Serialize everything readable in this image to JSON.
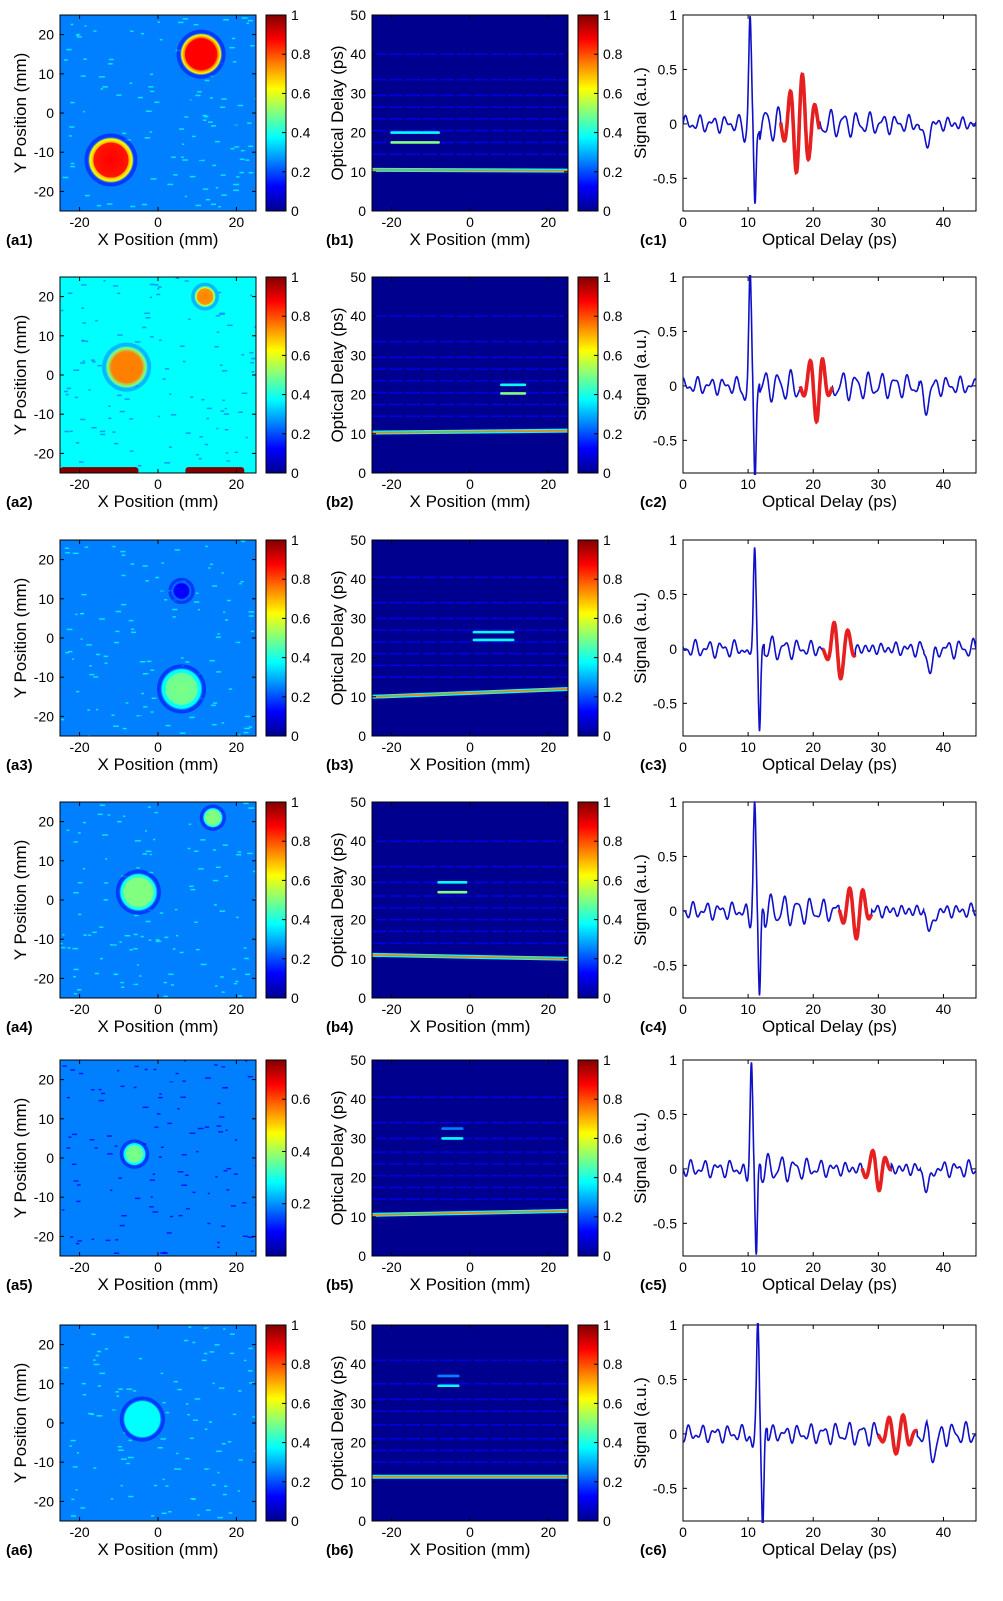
{
  "colormap": [
    "#00008f",
    "#0000ff",
    "#0080ff",
    "#00ffff",
    "#80ff80",
    "#ffff00",
    "#ff8000",
    "#ff0000",
    "#800000"
  ],
  "signal_color": "#1010c8",
  "highlight_color": "#e62020",
  "chart_data": [
    {
      "panel": "(a1)",
      "type": "heatmap",
      "xlabel": "X Position (mm)",
      "ylabel": "Y Position (mm)",
      "xlim": [
        -25,
        25
      ],
      "ylim": [
        -25,
        25
      ],
      "xticks": [
        -20,
        0,
        20
      ],
      "yticks": [
        -20,
        -10,
        0,
        10,
        20
      ],
      "colorbar": {
        "ticks": [
          0,
          0.2,
          0.4,
          0.6,
          0.8,
          1
        ],
        "max": 1
      },
      "background_level": 0.3,
      "features": [
        {
          "shape": "disk",
          "x": 11,
          "y": 15,
          "radius": 5.5,
          "level": 0.9
        },
        {
          "shape": "disk",
          "x": -12,
          "y": -12,
          "radius": 6,
          "level": 0.85
        }
      ]
    },
    {
      "panel": "(b1)",
      "type": "heatmap",
      "xlabel": "X Position (mm)",
      "ylabel": "Optical Delay (ps)",
      "xlim": [
        -25,
        25
      ],
      "ylim": [
        0,
        50
      ],
      "xticks": [
        -20,
        0,
        20
      ],
      "yticks": [
        0,
        10,
        20,
        30,
        40,
        50
      ],
      "colorbar": {
        "ticks": [
          0,
          0.2,
          0.4,
          0.6,
          0.8,
          1
        ],
        "max": 1
      },
      "surface": {
        "y_start": 10.5,
        "y_end": 10.3
      },
      "echo_lines": [
        14.5,
        17.5,
        20.5,
        23.5,
        26.5,
        29.5,
        33.5,
        40
      ],
      "defect_echoes": [
        {
          "y": 17.5,
          "x0": -20,
          "x1": -8,
          "level": 0.55
        },
        {
          "y": 20,
          "x0": -20,
          "x1": -8,
          "level": 0.35
        }
      ]
    },
    {
      "panel": "(c1)",
      "type": "line",
      "xlabel": "Optical Delay (ps)",
      "ylabel": "Signal (a.u.)",
      "xlim": [
        0,
        45
      ],
      "ylim": [
        -0.8,
        1
      ],
      "xticks": [
        0,
        10,
        20,
        30,
        40
      ],
      "yticks": [
        -0.5,
        0,
        0.5,
        1
      ],
      "main_pulse": {
        "t": 10.3,
        "peak": 1,
        "trough": -0.78
      },
      "highlight": {
        "t_start": 15,
        "t_end": 21,
        "amplitude": 0.45,
        "period": 1.9
      }
    },
    {
      "panel": "(a2)",
      "type": "heatmap",
      "xlabel": "X Position (mm)",
      "ylabel": "Y Position (mm)",
      "xlim": [
        -25,
        25
      ],
      "ylim": [
        -25,
        25
      ],
      "xticks": [
        -20,
        0,
        20
      ],
      "yticks": [
        -20,
        -10,
        0,
        10,
        20
      ],
      "colorbar": {
        "ticks": [
          0,
          0.2,
          0.4,
          0.6,
          0.8,
          1
        ],
        "max": 1
      },
      "background_level": 0.32,
      "features": [
        {
          "shape": "disk",
          "x": 12,
          "y": 20,
          "radius": 2.8,
          "level": 0.72
        },
        {
          "shape": "disk",
          "x": -8,
          "y": 2,
          "radius": 5.5,
          "level": 0.78
        },
        {
          "shape": "rect",
          "x0": -25,
          "x1": -5,
          "y0": -25,
          "y1": -24,
          "level": 0.95
        },
        {
          "shape": "rect",
          "x0": 7,
          "x1": 22,
          "y0": -25,
          "y1": -24,
          "level": 0.95
        }
      ]
    },
    {
      "panel": "(b2)",
      "type": "heatmap",
      "xlabel": "X Position (mm)",
      "ylabel": "Optical Delay (ps)",
      "xlim": [
        -25,
        25
      ],
      "ylim": [
        0,
        50
      ],
      "xticks": [
        -20,
        0,
        20
      ],
      "yticks": [
        0,
        10,
        20,
        30,
        40,
        50
      ],
      "colorbar": {
        "ticks": [
          0,
          0.2,
          0.4,
          0.6,
          0.8,
          1
        ],
        "max": 1
      },
      "surface": {
        "y_start": 10.3,
        "y_end": 10.8
      },
      "echo_lines": [
        14.5,
        17.5,
        20.5,
        23.5,
        26.5,
        29.5,
        33.5,
        40
      ],
      "defect_echoes": [
        {
          "y": 20.3,
          "x0": 8,
          "x1": 14,
          "level": 0.45
        },
        {
          "y": 22.5,
          "x0": 8,
          "x1": 14,
          "level": 0.35
        }
      ]
    },
    {
      "panel": "(c2)",
      "type": "line",
      "xlabel": "Optical Delay (ps)",
      "ylabel": "Signal (a.u.)",
      "xlim": [
        0,
        45
      ],
      "ylim": [
        -0.8,
        1
      ],
      "xticks": [
        0,
        10,
        20,
        30,
        40
      ],
      "yticks": [
        -0.5,
        0,
        0.5,
        1
      ],
      "main_pulse": {
        "t": 10.3,
        "peak": 1,
        "trough": -0.8
      },
      "highlight": {
        "t_start": 18,
        "t_end": 23,
        "amplitude": 0.35,
        "period": 2.0
      }
    },
    {
      "panel": "(a3)",
      "type": "heatmap",
      "xlabel": "X Position (mm)",
      "ylabel": "Y Position (mm)",
      "xlim": [
        -25,
        25
      ],
      "ylim": [
        -25,
        25
      ],
      "xticks": [
        -20,
        0,
        20
      ],
      "yticks": [
        -20,
        -10,
        0,
        10,
        20
      ],
      "colorbar": {
        "ticks": [
          0,
          0.2,
          0.4,
          0.6,
          0.8,
          1
        ],
        "max": 1
      },
      "background_level": 0.3,
      "features": [
        {
          "shape": "disk",
          "x": 6,
          "y": 12,
          "radius": 2.6,
          "level": 0.12
        },
        {
          "shape": "disk",
          "x": 6,
          "y": -13,
          "radius": 5.5,
          "level": 0.45
        }
      ]
    },
    {
      "panel": "(b3)",
      "type": "heatmap",
      "xlabel": "X Position (mm)",
      "ylabel": "Optical Delay (ps)",
      "xlim": [
        -25,
        25
      ],
      "ylim": [
        0,
        50
      ],
      "xticks": [
        -20,
        0,
        20
      ],
      "yticks": [
        0,
        10,
        20,
        30,
        40,
        50
      ],
      "colorbar": {
        "ticks": [
          0,
          0.2,
          0.4,
          0.6,
          0.8,
          1
        ],
        "max": 1
      },
      "surface": {
        "y_start": 10,
        "y_end": 12
      },
      "echo_lines": [
        15,
        18,
        21,
        24,
        27,
        30,
        34,
        40.5
      ],
      "defect_echoes": [
        {
          "y": 24.5,
          "x0": 1,
          "x1": 11,
          "level": 0.4
        },
        {
          "y": 26.5,
          "x0": 1,
          "x1": 11,
          "level": 0.35
        }
      ]
    },
    {
      "panel": "(c3)",
      "type": "line",
      "xlabel": "Optical Delay (ps)",
      "ylabel": "Signal (a.u.)",
      "xlim": [
        0,
        45
      ],
      "ylim": [
        -0.8,
        1
      ],
      "xticks": [
        0,
        10,
        20,
        30,
        40
      ],
      "yticks": [
        -0.5,
        0,
        0.5,
        1
      ],
      "main_pulse": {
        "t": 11,
        "peak": 1,
        "trough": -0.78
      },
      "highlight": {
        "t_start": 21.5,
        "t_end": 26.5,
        "amplitude": 0.28,
        "period": 2.2
      }
    },
    {
      "panel": "(a4)",
      "type": "heatmap",
      "xlabel": "X Position (mm)",
      "ylabel": "Y Position (mm)",
      "xlim": [
        -25,
        25
      ],
      "ylim": [
        -25,
        25
      ],
      "xticks": [
        -20,
        0,
        20
      ],
      "yticks": [
        -20,
        -10,
        0,
        10,
        20
      ],
      "colorbar": {
        "ticks": [
          0,
          0.2,
          0.4,
          0.6,
          0.8,
          1
        ],
        "max": 1
      },
      "background_level": 0.3,
      "features": [
        {
          "shape": "disk",
          "x": 14,
          "y": 21,
          "radius": 2.6,
          "level": 0.48
        },
        {
          "shape": "disk",
          "x": -5,
          "y": 2,
          "radius": 5,
          "level": 0.5
        }
      ]
    },
    {
      "panel": "(b4)",
      "type": "heatmap",
      "xlabel": "X Position (mm)",
      "ylabel": "Optical Delay (ps)",
      "xlim": [
        -25,
        25
      ],
      "ylim": [
        0,
        50
      ],
      "xticks": [
        -20,
        0,
        20
      ],
      "yticks": [
        0,
        10,
        20,
        30,
        40,
        50
      ],
      "colorbar": {
        "ticks": [
          0,
          0.2,
          0.4,
          0.6,
          0.8,
          1
        ],
        "max": 1
      },
      "surface": {
        "y_start": 11,
        "y_end": 10
      },
      "echo_lines": [
        14,
        17,
        20,
        23,
        26,
        29.5,
        33.5,
        40
      ],
      "defect_echoes": [
        {
          "y": 27,
          "x0": -8,
          "x1": -1,
          "level": 0.45
        },
        {
          "y": 29.5,
          "x0": -8,
          "x1": -1,
          "level": 0.35
        }
      ]
    },
    {
      "panel": "(c4)",
      "type": "line",
      "xlabel": "Optical Delay (ps)",
      "ylabel": "Signal (a.u.)",
      "xlim": [
        0,
        45
      ],
      "ylim": [
        -0.8,
        1
      ],
      "xticks": [
        0,
        10,
        20,
        30,
        40
      ],
      "yticks": [
        -0.5,
        0,
        0.5,
        1
      ],
      "main_pulse": {
        "t": 11,
        "peak": 1,
        "trough": -0.8
      },
      "highlight": {
        "t_start": 24,
        "t_end": 29,
        "amplitude": 0.25,
        "period": 2.1
      }
    },
    {
      "panel": "(a5)",
      "type": "heatmap",
      "xlabel": "X Position (mm)",
      "ylabel": "Y Position (mm)",
      "xlim": [
        -25,
        25
      ],
      "ylim": [
        -25,
        25
      ],
      "xticks": [
        -20,
        0,
        20
      ],
      "yticks": [
        -20,
        -10,
        0,
        10,
        20
      ],
      "colorbar": {
        "ticks": [
          0.2,
          0.4,
          0.6
        ],
        "max": 0.75
      },
      "background_level": 0.2,
      "features": [
        {
          "shape": "disk",
          "x": -6,
          "y": 1,
          "radius": 3,
          "level": 0.45
        }
      ]
    },
    {
      "panel": "(b5)",
      "type": "heatmap",
      "xlabel": "X Position (mm)",
      "ylabel": "Optical Delay (ps)",
      "xlim": [
        -25,
        25
      ],
      "ylim": [
        0,
        50
      ],
      "xticks": [
        -20,
        0,
        20
      ],
      "yticks": [
        0,
        10,
        20,
        30,
        40,
        50
      ],
      "colorbar": {
        "ticks": [
          0,
          0.2,
          0.4,
          0.6,
          0.8,
          1
        ],
        "max": 1
      },
      "surface": {
        "y_start": 10.5,
        "y_end": 11.5
      },
      "echo_lines": [
        14.5,
        17.5,
        20.5,
        23.5,
        26.5,
        30,
        34,
        40.5
      ],
      "defect_echoes": [
        {
          "y": 30,
          "x0": -7,
          "x1": -2,
          "level": 0.35
        },
        {
          "y": 32.5,
          "x0": -7,
          "x1": -2,
          "level": 0.3
        }
      ]
    },
    {
      "panel": "(c5)",
      "type": "line",
      "xlabel": "Optical Delay (ps)",
      "ylabel": "Signal (a.u.)",
      "xlim": [
        0,
        45
      ],
      "ylim": [
        -0.8,
        1
      ],
      "xticks": [
        0,
        10,
        20,
        30,
        40
      ],
      "yticks": [
        -0.5,
        0,
        0.5,
        1
      ],
      "main_pulse": {
        "t": 10.5,
        "peak": 1,
        "trough": -0.8
      },
      "highlight": {
        "t_start": 27.5,
        "t_end": 32,
        "amplitude": 0.2,
        "period": 2.1
      }
    },
    {
      "panel": "(a6)",
      "type": "heatmap",
      "xlabel": "X Position (mm)",
      "ylabel": "Y Position (mm)",
      "xlim": [
        -25,
        25
      ],
      "ylim": [
        -25,
        25
      ],
      "xticks": [
        -20,
        0,
        20
      ],
      "yticks": [
        -20,
        -10,
        0,
        10,
        20
      ],
      "colorbar": {
        "ticks": [
          0,
          0.2,
          0.4,
          0.6,
          0.8,
          1
        ],
        "max": 1
      },
      "background_level": 0.3,
      "features": [
        {
          "shape": "disk",
          "x": -4,
          "y": 1,
          "radius": 5,
          "level": 0.42
        }
      ]
    },
    {
      "panel": "(b6)",
      "type": "heatmap",
      "xlabel": "X Position (mm)",
      "ylabel": "Optical Delay (ps)",
      "xlim": [
        -25,
        25
      ],
      "ylim": [
        0,
        50
      ],
      "xticks": [
        -20,
        0,
        20
      ],
      "yticks": [
        0,
        10,
        20,
        30,
        40,
        50
      ],
      "colorbar": {
        "ticks": [
          0,
          0.2,
          0.4,
          0.6,
          0.8,
          1
        ],
        "max": 1
      },
      "surface": {
        "y_start": 11.3,
        "y_end": 11.3
      },
      "echo_lines": [
        15,
        18,
        21,
        24.5,
        28,
        31,
        35,
        41
      ],
      "defect_echoes": [
        {
          "y": 34.5,
          "x0": -8,
          "x1": -3,
          "level": 0.35
        },
        {
          "y": 37,
          "x0": -8,
          "x1": -3,
          "level": 0.3
        }
      ]
    },
    {
      "panel": "(c6)",
      "type": "line",
      "xlabel": "Optical Delay (ps)",
      "ylabel": "Signal (a.u.)",
      "xlim": [
        0,
        45
      ],
      "ylim": [
        -0.8,
        1
      ],
      "xticks": [
        0,
        10,
        20,
        30,
        40
      ],
      "yticks": [
        -0.5,
        0,
        0.5,
        1
      ],
      "main_pulse": {
        "t": 11.5,
        "peak": 1,
        "trough": -0.8
      },
      "highlight": {
        "t_start": 30,
        "t_end": 36,
        "amplitude": 0.18,
        "period": 2.2
      }
    }
  ]
}
